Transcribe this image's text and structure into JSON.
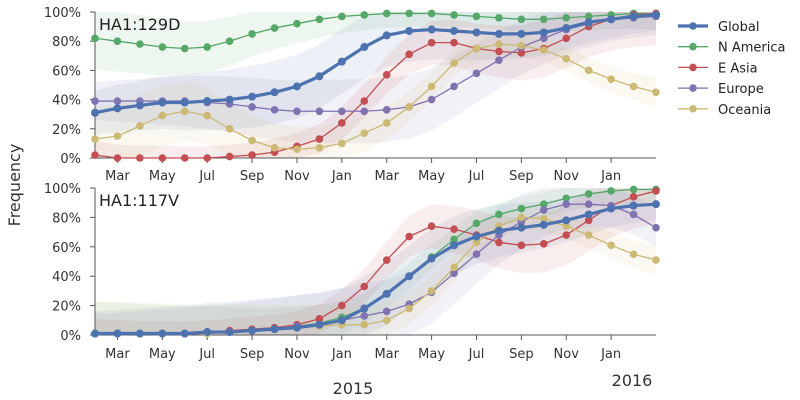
{
  "ylabel": "Frequency",
  "year_labels": [
    "2015",
    "2016"
  ],
  "legend": [
    {
      "name": "Global",
      "color": "#4c72b0"
    },
    {
      "name": "N America",
      "color": "#55a868"
    },
    {
      "name": "E Asia",
      "color": "#c44e52"
    },
    {
      "name": "Europe",
      "color": "#8172b2"
    },
    {
      "name": "Oceania",
      "color": "#ccb974"
    }
  ],
  "chart_data": [
    {
      "type": "line",
      "title": "HA1:129D",
      "x_tick_labels": [
        "Mar",
        "May",
        "Jul",
        "Sep",
        "Nov",
        "Jan",
        "Mar",
        "May",
        "Jul",
        "Sep",
        "Nov",
        "Jan"
      ],
      "x_start": "2014-02",
      "x_end": "2016-02",
      "y_tick_labels": [
        "0%",
        "20%",
        "40%",
        "60%",
        "80%",
        "100%"
      ],
      "ylim": [
        0,
        100
      ],
      "legend_position": "right",
      "series": [
        {
          "name": "Global",
          "color": "#4c72b0",
          "values": [
            31,
            34,
            36,
            38,
            38,
            39,
            40,
            42,
            45,
            49,
            56,
            66,
            76,
            84,
            87,
            88,
            87,
            86,
            85,
            85,
            86,
            89,
            93,
            95,
            97,
            98
          ]
        },
        {
          "name": "N America",
          "color": "#55a868",
          "values": [
            82,
            80,
            78,
            76,
            75,
            76,
            80,
            85,
            89,
            92,
            95,
            97,
            98,
            99,
            99,
            99,
            98,
            97,
            96,
            95,
            95,
            96,
            97,
            98,
            99,
            99
          ]
        },
        {
          "name": "E Asia",
          "color": "#c44e52",
          "values": [
            2,
            0,
            0,
            0,
            0,
            0,
            1,
            2,
            4,
            8,
            13,
            24,
            39,
            57,
            71,
            79,
            79,
            75,
            73,
            72,
            75,
            82,
            90,
            95,
            98,
            99
          ]
        },
        {
          "name": "Europe",
          "color": "#8172b2",
          "values": [
            39,
            39,
            39,
            39,
            39,
            38,
            37,
            35,
            33,
            32,
            32,
            32,
            32,
            33,
            35,
            40,
            49,
            58,
            67,
            76,
            82,
            88,
            92,
            95,
            96,
            97
          ]
        },
        {
          "name": "Oceania",
          "color": "#ccb974",
          "values": [
            13,
            15,
            22,
            29,
            32,
            29,
            20,
            12,
            7,
            6,
            7,
            10,
            17,
            24,
            35,
            49,
            65,
            75,
            78,
            77,
            74,
            68,
            60,
            54,
            49,
            45
          ]
        }
      ]
    },
    {
      "type": "line",
      "title": "HA1:117V",
      "x_tick_labels": [
        "Mar",
        "May",
        "Jul",
        "Sep",
        "Nov",
        "Jan",
        "Mar",
        "May",
        "Jul",
        "Sep",
        "Nov",
        "Jan"
      ],
      "x_start": "2014-02",
      "x_end": "2016-02",
      "y_tick_labels": [
        "0%",
        "20%",
        "40%",
        "60%",
        "80%",
        "100%"
      ],
      "ylim": [
        0,
        100
      ],
      "series": [
        {
          "name": "Global",
          "color": "#4c72b0",
          "values": [
            1,
            1,
            1,
            1,
            1,
            2,
            2,
            3,
            4,
            5,
            7,
            10,
            18,
            28,
            40,
            52,
            61,
            67,
            71,
            73,
            75,
            78,
            82,
            86,
            88,
            89
          ]
        },
        {
          "name": "N America",
          "color": "#55a868",
          "values": [
            1,
            1,
            1,
            1,
            1,
            2,
            2,
            3,
            4,
            6,
            8,
            12,
            18,
            28,
            40,
            53,
            65,
            76,
            82,
            86,
            89,
            93,
            96,
            98,
            99,
            99
          ]
        },
        {
          "name": "E Asia",
          "color": "#c44e52",
          "values": [
            1,
            1,
            1,
            1,
            1,
            2,
            3,
            4,
            5,
            7,
            11,
            20,
            33,
            51,
            67,
            74,
            72,
            68,
            63,
            61,
            62,
            68,
            78,
            88,
            94,
            98
          ]
        },
        {
          "name": "Europe",
          "color": "#8172b2",
          "values": [
            1,
            1,
            1,
            1,
            1,
            2,
            2,
            3,
            4,
            6,
            7,
            10,
            13,
            16,
            21,
            29,
            42,
            55,
            68,
            77,
            85,
            89,
            89,
            88,
            82,
            73
          ]
        },
        {
          "name": "Oceania",
          "color": "#ccb974",
          "values": [
            1,
            1,
            1,
            1,
            1,
            1,
            2,
            3,
            4,
            5,
            6,
            7,
            7,
            10,
            18,
            30,
            46,
            63,
            74,
            80,
            79,
            74,
            68,
            61,
            55,
            51
          ]
        }
      ]
    }
  ]
}
